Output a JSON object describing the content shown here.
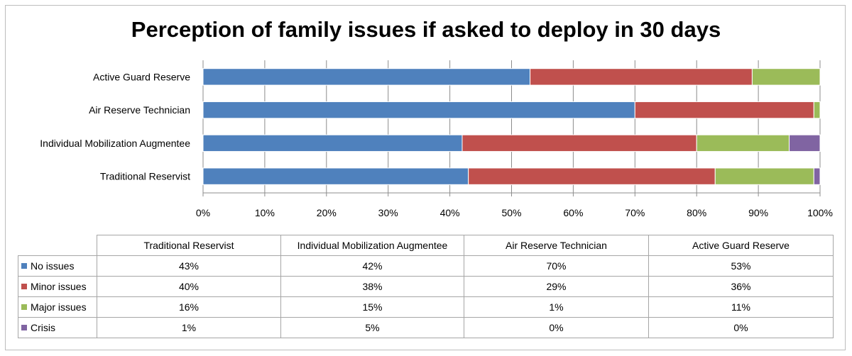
{
  "chart_data": {
    "type": "bar",
    "orientation": "horizontal",
    "stacked": true,
    "title": "Perception of family issues if asked to deploy in 30 days",
    "categories": [
      "Traditional Reservist",
      "Individual Mobilization Augmentee",
      "Air Reserve Technician",
      "Active Guard Reserve"
    ],
    "series": [
      {
        "name": "No issues",
        "color": "#4f81bd",
        "values": [
          43,
          42,
          70,
          53
        ],
        "labels": [
          "43%",
          "42%",
          "70%",
          "53%"
        ]
      },
      {
        "name": "Minor issues",
        "color": "#c0504d",
        "values": [
          40,
          38,
          29,
          36
        ],
        "labels": [
          "40%",
          "38%",
          "29%",
          "36%"
        ]
      },
      {
        "name": "Major issues",
        "color": "#9bbb59",
        "values": [
          16,
          15,
          1,
          11
        ],
        "labels": [
          "16%",
          "15%",
          "1%",
          "11%"
        ]
      },
      {
        "name": "Crisis",
        "color": "#8064a2",
        "values": [
          1,
          5,
          0,
          0
        ],
        "labels": [
          "1%",
          "5%",
          "0%",
          "0%"
        ]
      }
    ],
    "xlim": [
      0,
      100
    ],
    "xticks": [
      "0%",
      "10%",
      "20%",
      "30%",
      "40%",
      "50%",
      "60%",
      "70%",
      "80%",
      "90%",
      "100%"
    ],
    "grid": true,
    "legend": "data table below chart"
  }
}
